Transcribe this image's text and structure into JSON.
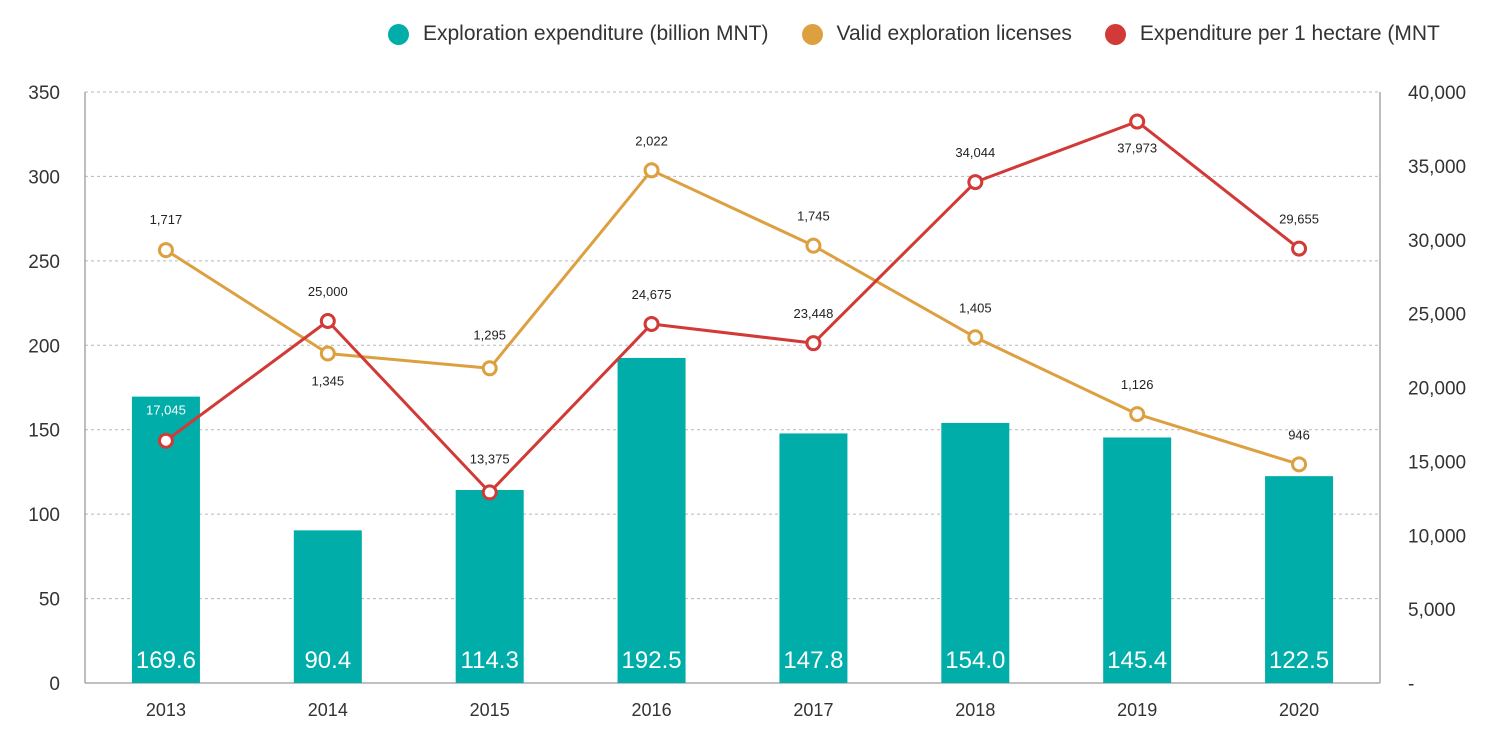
{
  "chart_data": {
    "type": "bar",
    "categories": [
      "2013",
      "2014",
      "2015",
      "2016",
      "2017",
      "2018",
      "2019",
      "2020"
    ],
    "series": [
      {
        "name": "Exploration expenditure (billion MNT)",
        "type": "bar",
        "axis": "left",
        "color": "#00ADA9",
        "values": [
          169.6,
          90.4,
          114.3,
          192.5,
          147.8,
          154.0,
          145.4,
          122.5
        ],
        "labels": [
          "169.6",
          "90.4",
          "114.3",
          "192.5",
          "147.8",
          "154.0",
          "145.4",
          "122.5"
        ]
      },
      {
        "name": "Valid exploration licenses",
        "type": "line",
        "axis": "right",
        "color": "#DDA040",
        "values": [
          1717,
          1345,
          1295,
          2022,
          1745,
          1405,
          1126,
          946
        ],
        "plotted": [
          29300,
          22300,
          21300,
          34700,
          29600,
          23400,
          18200,
          14800
        ],
        "labels": [
          "1,717",
          "1,345",
          "1,295",
          "2,022",
          "1,745",
          "1,405",
          "1,126",
          "946"
        ]
      },
      {
        "name": "Expenditure per 1 hectare (MNT",
        "type": "line",
        "axis": "right",
        "color": "#D13A36",
        "values": [
          17045,
          25000,
          13375,
          24675,
          23448,
          34044,
          37973,
          29655
        ],
        "plotted": [
          16400,
          24500,
          12900,
          24300,
          23000,
          33900,
          38000,
          29400
        ],
        "labels": [
          "17,045",
          "25,000",
          "13,375",
          "24,675",
          "23,448",
          "34,044",
          "37,973",
          "29,655"
        ]
      }
    ],
    "y_left": {
      "min": 0,
      "max": 350,
      "ticks": [
        0,
        50,
        100,
        150,
        200,
        250,
        300,
        350
      ],
      "tick_labels": [
        "0",
        "50",
        "100",
        "150",
        "200",
        "250",
        "300",
        "350"
      ]
    },
    "y_right": {
      "min": 0,
      "max": 40000,
      "ticks": [
        0,
        5000,
        10000,
        15000,
        20000,
        25000,
        30000,
        35000,
        40000
      ],
      "tick_labels": [
        "-",
        "5,000",
        "10,000",
        "15,000",
        "20,000",
        "25,000",
        "30,000",
        "35,000",
        "40,000"
      ]
    },
    "grid": true,
    "legend_position": "top-right",
    "title": "",
    "xlabel": "",
    "ylabel": ""
  }
}
